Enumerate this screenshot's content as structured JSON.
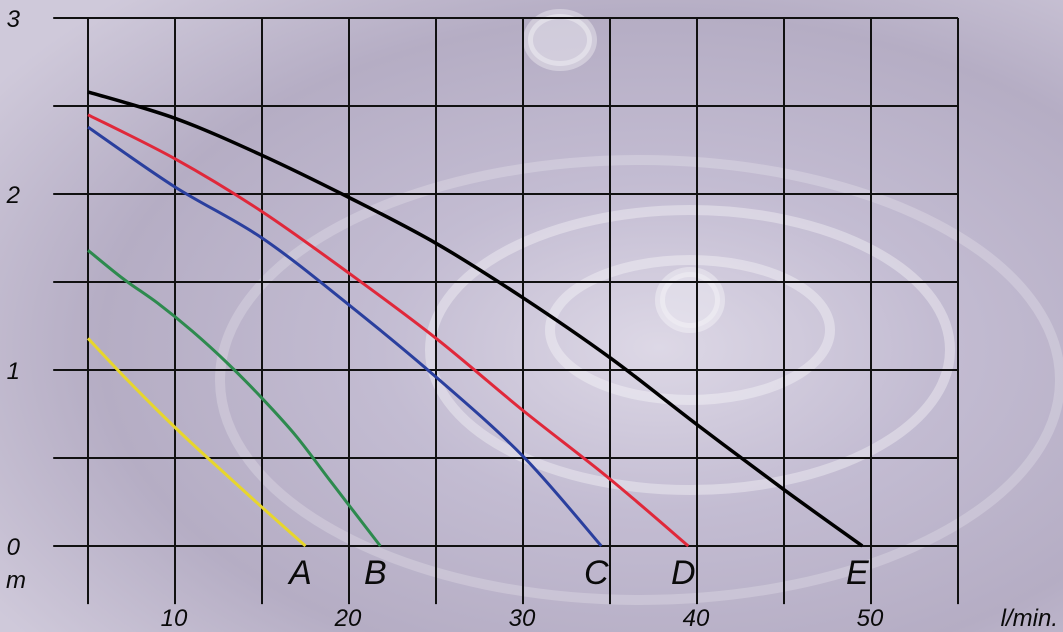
{
  "chart_data": {
    "type": "line",
    "title": "",
    "xlabel": "l/min.",
    "ylabel": "m",
    "xlim": [
      0,
      50
    ],
    "ylim": [
      0,
      3
    ],
    "grid": true,
    "x_ticks": [
      "10",
      "20",
      "30",
      "40",
      "50"
    ],
    "x_tick_values": [
      10,
      20,
      30,
      40,
      50
    ],
    "y_ticks": [
      "0",
      "1",
      "2",
      "3"
    ],
    "y_tick_values": [
      0,
      1,
      2,
      3
    ],
    "series": [
      {
        "name": "A",
        "color": "#e7d62c",
        "x": [
          0,
          2,
          4,
          6,
          8,
          10,
          12.5
        ],
        "y": [
          1.18,
          0.97,
          0.77,
          0.58,
          0.4,
          0.22,
          0.0
        ]
      },
      {
        "name": "B",
        "color": "#2d8a4e",
        "x": [
          0,
          2,
          4,
          6,
          8,
          10,
          12,
          14,
          16.8
        ],
        "y": [
          1.68,
          1.52,
          1.38,
          1.22,
          1.04,
          0.84,
          0.62,
          0.36,
          0.0
        ]
      },
      {
        "name": "C",
        "color": "#2a3f9e",
        "x": [
          0,
          5,
          10,
          15,
          20,
          25,
          29.5
        ],
        "y": [
          2.38,
          2.04,
          1.75,
          1.37,
          0.96,
          0.51,
          0.0
        ]
      },
      {
        "name": "D",
        "color": "#e0283a",
        "x": [
          0,
          5,
          10,
          15,
          20,
          25,
          30,
          34.5
        ],
        "y": [
          2.45,
          2.2,
          1.9,
          1.55,
          1.18,
          0.77,
          0.38,
          0.0
        ]
      },
      {
        "name": "E",
        "color": "#000000",
        "x": [
          0,
          5,
          10,
          15,
          20,
          25,
          30,
          35,
          40,
          44.5
        ],
        "y": [
          2.58,
          2.43,
          2.22,
          1.98,
          1.72,
          1.41,
          1.07,
          0.69,
          0.32,
          0.0
        ]
      }
    ]
  }
}
